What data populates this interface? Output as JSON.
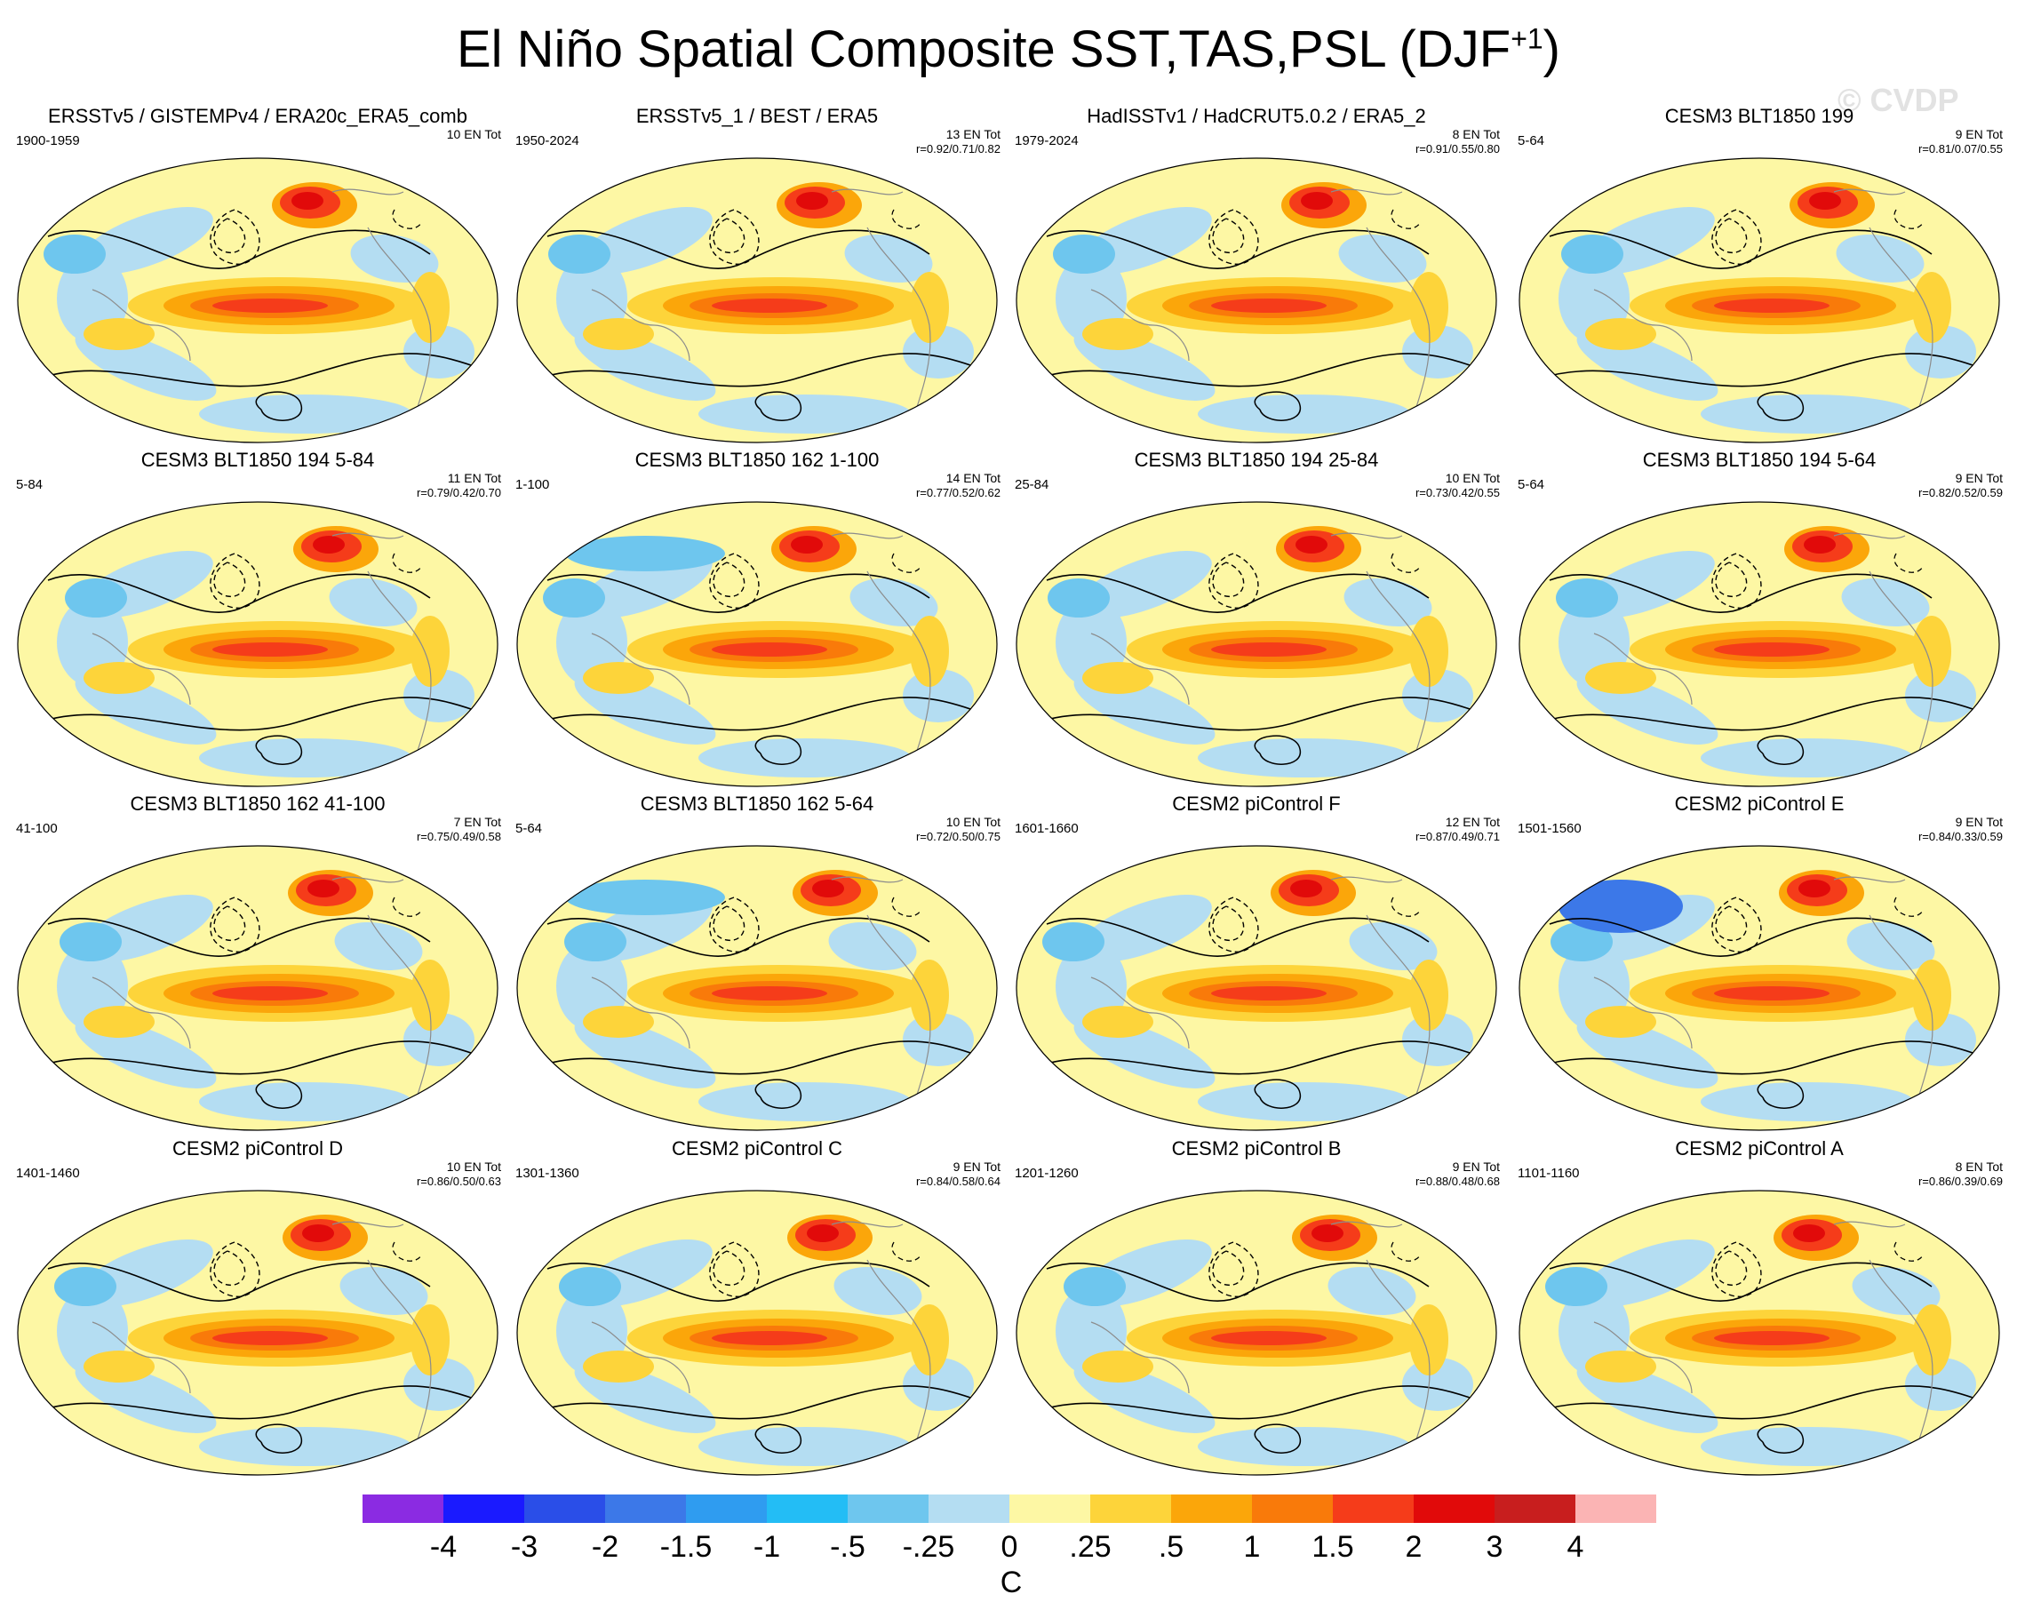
{
  "figure": {
    "title": "El Niño Spatial Composite SST,TAS,PSL (DJF",
    "title_sup": "+1",
    "title_close": ")",
    "watermark": "© CVDP"
  },
  "panels": [
    {
      "title": "ERSSTv5 / GISTEMPv4 / ERA20c_ERA5_comb",
      "years": "1900-1959",
      "count": "10 EN Tot",
      "corr": ""
    },
    {
      "title": "ERSSTv5_1 / BEST / ERA5",
      "years": "1950-2024",
      "count": "13 EN Tot",
      "corr": "r=0.92/0.71/0.82"
    },
    {
      "title": "HadISSTv1 / HadCRUT5.0.2 / ERA5_2",
      "years": "1979-2024",
      "count": "8 EN Tot",
      "corr": "r=0.91/0.55/0.80"
    },
    {
      "title": "CESM3 BLT1850 199",
      "years": "5-64",
      "count": "9 EN Tot",
      "corr": "r=0.81/0.07/0.55"
    },
    {
      "title": "CESM3 BLT1850 194 5-84",
      "years": "5-84",
      "count": "11 EN Tot",
      "corr": "r=0.79/0.42/0.70"
    },
    {
      "title": "CESM3 BLT1850 162 1-100",
      "years": "1-100",
      "count": "14 EN Tot",
      "corr": "r=0.77/0.52/0.62"
    },
    {
      "title": "CESM3 BLT1850 194 25-84",
      "years": "25-84",
      "count": "10 EN Tot",
      "corr": "r=0.73/0.42/0.55"
    },
    {
      "title": "CESM3 BLT1850 194 5-64",
      "years": "5-64",
      "count": "9 EN Tot",
      "corr": "r=0.82/0.52/0.59"
    },
    {
      "title": "CESM3 BLT1850 162 41-100",
      "years": "41-100",
      "count": "7 EN Tot",
      "corr": "r=0.75/0.49/0.58"
    },
    {
      "title": "CESM3 BLT1850 162 5-64",
      "years": "5-64",
      "count": "10 EN Tot",
      "corr": "r=0.72/0.50/0.75"
    },
    {
      "title": "CESM2 piControl F",
      "years": "1601-1660",
      "count": "12 EN Tot",
      "corr": "r=0.87/0.49/0.71"
    },
    {
      "title": "CESM2 piControl E",
      "years": "1501-1560",
      "count": "9 EN Tot",
      "corr": "r=0.84/0.33/0.59"
    },
    {
      "title": "CESM2 piControl D",
      "years": "1401-1460",
      "count": "10 EN Tot",
      "corr": "r=0.86/0.50/0.63"
    },
    {
      "title": "CESM2 piControl C",
      "years": "1301-1360",
      "count": "9 EN Tot",
      "corr": "r=0.84/0.58/0.64"
    },
    {
      "title": "CESM2 piControl B",
      "years": "1201-1260",
      "count": "9 EN Tot",
      "corr": "r=0.88/0.48/0.68"
    },
    {
      "title": "CESM2 piControl A",
      "years": "1101-1160",
      "count": "8 EN Tot",
      "corr": "r=0.86/0.39/0.69"
    }
  ],
  "colorbar": {
    "labels": [
      "-4",
      "-3",
      "-2",
      "-1.5",
      "-1",
      "-.5",
      "-.25",
      "0",
      ".25",
      ".5",
      "1",
      "1.5",
      "2",
      "3",
      "4"
    ],
    "colors": [
      "#8b2be2",
      "#1a1aff",
      "#2a4ee8",
      "#3c78e8",
      "#2f9cf0",
      "#23bdf5",
      "#6ec6ee",
      "#b4ddf2",
      "#fdf7a4",
      "#fdd43a",
      "#fba60a",
      "#f97a0a",
      "#f53c1a",
      "#e10a0a",
      "#c81e1e",
      "#fbb4b4"
    ],
    "units": "C"
  },
  "colors": {
    "ocean_neutral": "#fdf7a4",
    "cool": "#b4ddf2",
    "cool_mid": "#6ec6ee",
    "warm_light": "#fdd43a",
    "warm": "#fba60a",
    "warm_strong": "#f97a0a",
    "hot": "#f53c1a",
    "very_hot": "#e10a0a",
    "cold_deep": "#3c78e8"
  }
}
